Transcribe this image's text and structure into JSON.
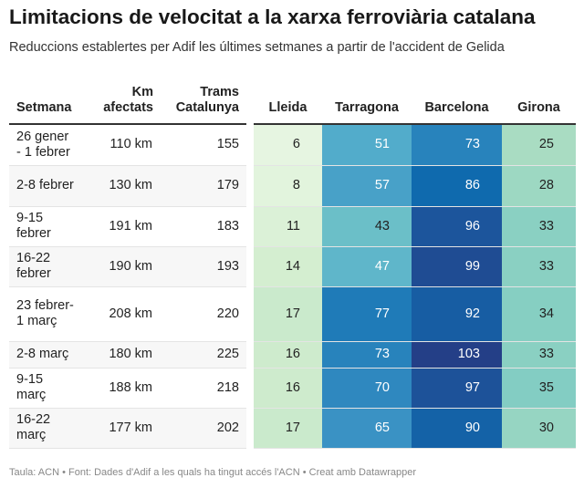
{
  "title": "Limitacions de velocitat a la xarxa ferroviària catalana",
  "subtitle": "Reduccions establertes per Adif les últimes setmanes a partir de l'accident de Gelida",
  "footer": "Taula: ACN • Font: Dades d'Adif a les quals ha tingut accés l'ACN • Creat amb Datawrapper",
  "chart_data": {
    "type": "table",
    "columns": [
      "Setmana",
      "Km afectats",
      "Trams Catalunya",
      "Lleida",
      "Tarragona",
      "Barcelona",
      "Girona"
    ],
    "heatmap_columns": [
      "Lleida",
      "Tarragona",
      "Barcelona",
      "Girona"
    ],
    "color_scale": [
      {
        "value": 0,
        "color": "#f4fbee"
      },
      {
        "value": 15,
        "color": "#d2edce"
      },
      {
        "value": 25,
        "color": "#a9dcc2"
      },
      {
        "value": 34,
        "color": "#86cfc2"
      },
      {
        "value": 43,
        "color": "#6bbfc8"
      },
      {
        "value": 51,
        "color": "#52accb"
      },
      {
        "value": 65,
        "color": "#3a92c4"
      },
      {
        "value": 77,
        "color": "#1f7bb8"
      },
      {
        "value": 86,
        "color": "#0f6aae"
      },
      {
        "value": 96,
        "color": "#1c559c"
      },
      {
        "value": 103,
        "color": "#243f87"
      }
    ],
    "rows": [
      {
        "week": "26 gener - 1 febrer",
        "km": "110 km",
        "trams": 155,
        "lleida": 6,
        "tarragona": 51,
        "barcelona": 73,
        "girona": 25
      },
      {
        "week": "2-8 febrer",
        "km": "130 km",
        "trams": 179,
        "lleida": 8,
        "tarragona": 57,
        "barcelona": 86,
        "girona": 28
      },
      {
        "week": "9-15 febrer",
        "km": "191 km",
        "trams": 183,
        "lleida": 11,
        "tarragona": 43,
        "barcelona": 96,
        "girona": 33
      },
      {
        "week": "16-22 febrer",
        "km": "190 km",
        "trams": 193,
        "lleida": 14,
        "tarragona": 47,
        "barcelona": 99,
        "girona": 33
      },
      {
        "week": "23 febrer-1 març",
        "km": "208 km",
        "trams": 220,
        "lleida": 17,
        "tarragona": 77,
        "barcelona": 92,
        "girona": 34
      },
      {
        "week": "2-8 març",
        "km": "180 km",
        "trams": 225,
        "lleida": 16,
        "tarragona": 73,
        "barcelona": 103,
        "girona": 33
      },
      {
        "week": "9-15 març",
        "km": "188 km",
        "trams": 218,
        "lleida": 16,
        "tarragona": 70,
        "barcelona": 97,
        "girona": 35
      },
      {
        "week": "16-22 març",
        "km": "177 km",
        "trams": 202,
        "lleida": 17,
        "tarragona": 65,
        "barcelona": 90,
        "girona": 30
      }
    ]
  }
}
